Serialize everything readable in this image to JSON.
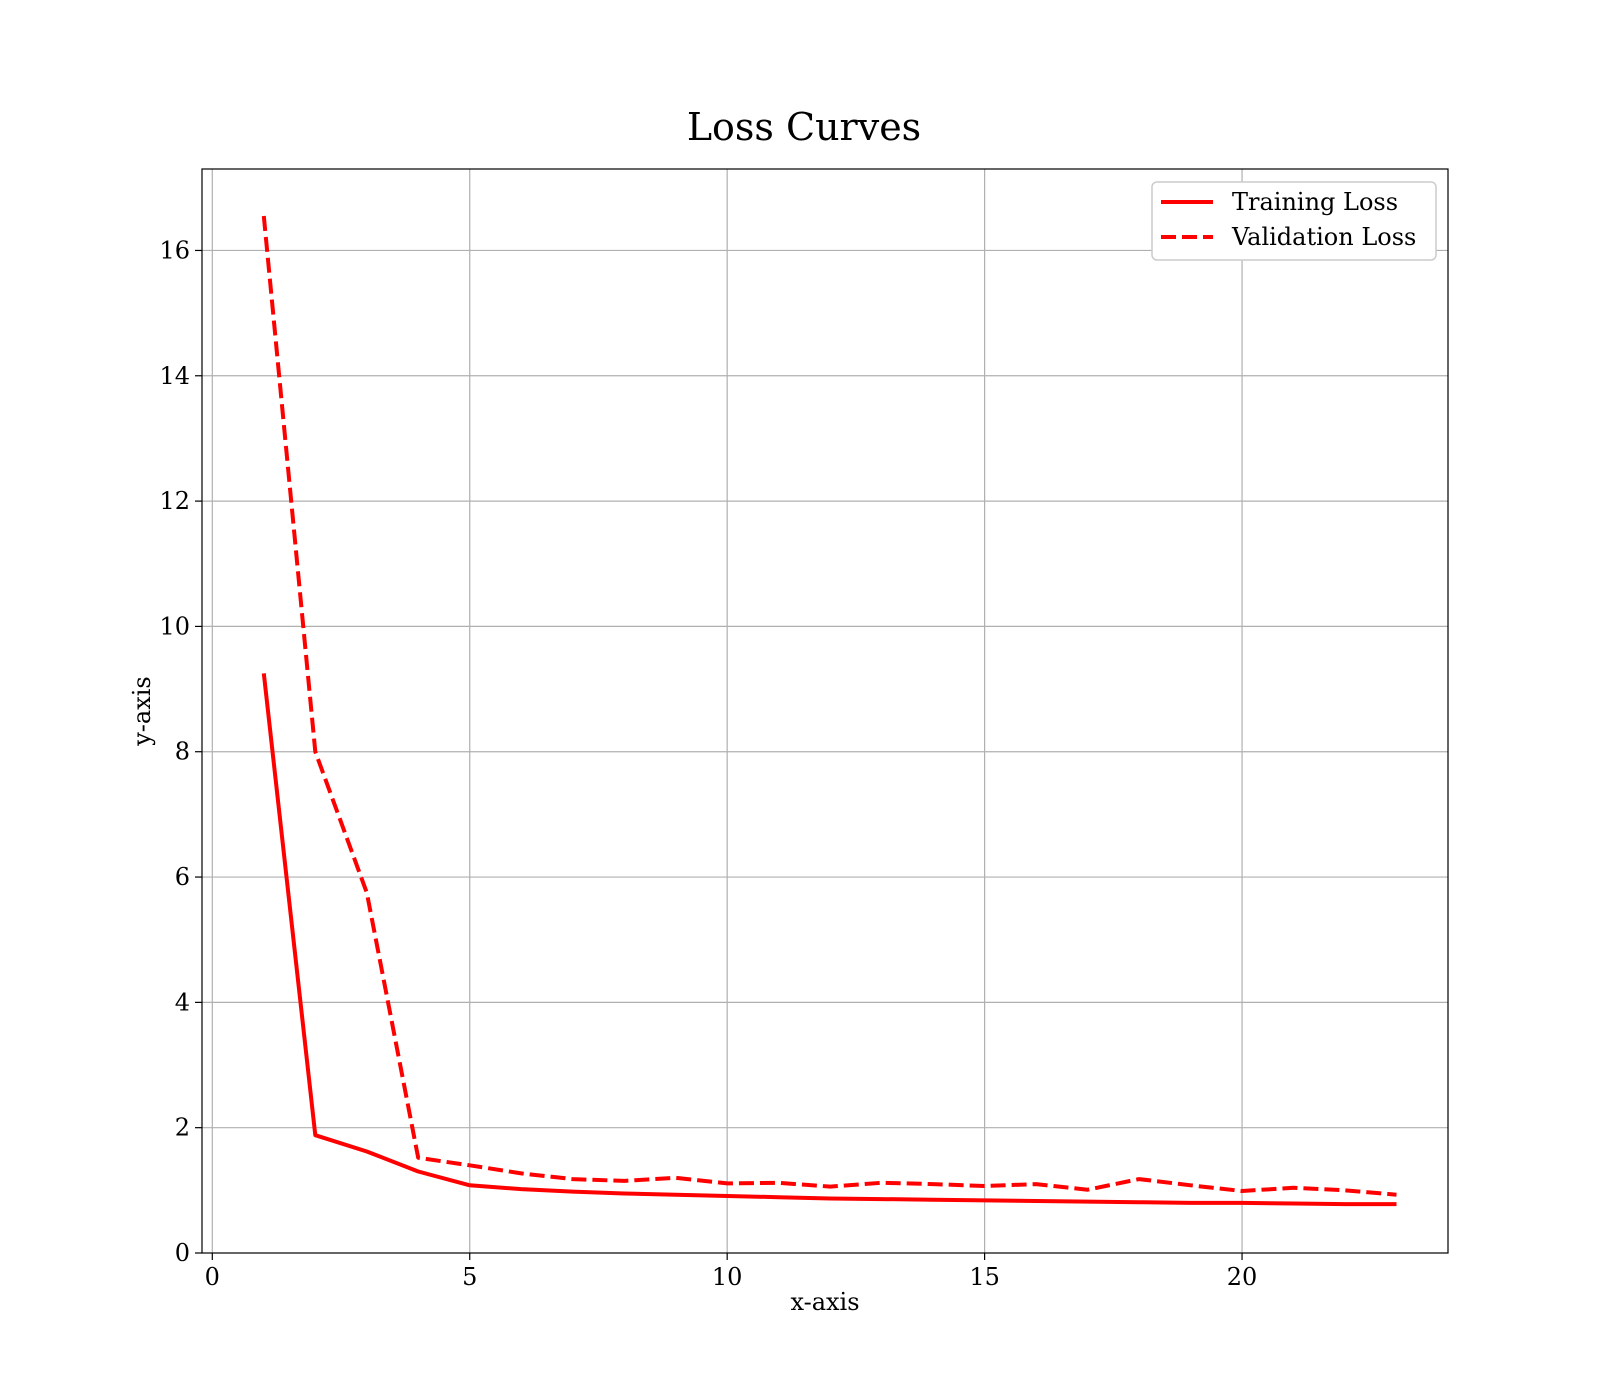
{
  "chart_data": {
    "type": "line",
    "title": "Loss Curves",
    "xlabel": "x-axis",
    "ylabel": "y-axis",
    "xlim": [
      -0.2,
      24
    ],
    "ylim": [
      0,
      17.3
    ],
    "x_ticks": [
      0,
      5,
      10,
      15,
      20
    ],
    "y_ticks": [
      0,
      2,
      4,
      6,
      8,
      10,
      12,
      14,
      16
    ],
    "grid": true,
    "legend_position": "top-right",
    "series": [
      {
        "name": "Training Loss",
        "color": "#ff0000",
        "style": "solid",
        "x": [
          1,
          2,
          3,
          4,
          5,
          6,
          7,
          8,
          9,
          10,
          11,
          12,
          13,
          14,
          15,
          16,
          17,
          18,
          19,
          20,
          21,
          22,
          23
        ],
        "values": [
          9.25,
          1.88,
          1.62,
          1.3,
          1.08,
          1.02,
          0.98,
          0.95,
          0.93,
          0.91,
          0.89,
          0.87,
          0.86,
          0.85,
          0.84,
          0.83,
          0.82,
          0.81,
          0.8,
          0.8,
          0.79,
          0.78,
          0.78
        ]
      },
      {
        "name": "Validation Loss",
        "color": "#ff0000",
        "style": "dashed",
        "x": [
          1,
          2,
          3,
          4,
          5,
          6,
          7,
          8,
          9,
          10,
          11,
          12,
          13,
          14,
          15,
          16,
          17,
          18,
          19,
          20,
          21,
          22,
          23
        ],
        "values": [
          16.55,
          8.0,
          5.75,
          1.52,
          1.4,
          1.27,
          1.18,
          1.15,
          1.2,
          1.11,
          1.12,
          1.06,
          1.12,
          1.1,
          1.07,
          1.1,
          1.01,
          1.18,
          1.08,
          0.99,
          1.04,
          1.0,
          0.93
        ]
      }
    ]
  }
}
